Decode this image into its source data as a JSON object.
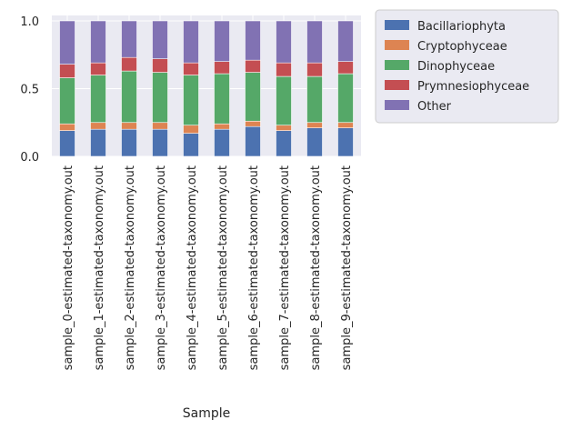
{
  "chart_data": {
    "type": "bar",
    "stacked": true,
    "title": "",
    "xlabel": "Sample",
    "ylabel": "",
    "ylim": [
      0,
      1.04
    ],
    "yticks": [
      0.0,
      0.5,
      1.0
    ],
    "ytick_labels": [
      "0.0",
      "0.5",
      "1.0"
    ],
    "grid": true,
    "legend_position": "outside-top-right",
    "categories": [
      "sample_0-estimated-taxonomy.out",
      "sample_1-estimated-taxonomy.out",
      "sample_2-estimated-taxonomy.out",
      "sample_3-estimated-taxonomy.out",
      "sample_4-estimated-taxonomy.out",
      "sample_5-estimated-taxonomy.out",
      "sample_6-estimated-taxonomy.out",
      "sample_7-estimated-taxonomy.out",
      "sample_8-estimated-taxonomy.out",
      "sample_9-estimated-taxonomy.out"
    ],
    "series": [
      {
        "name": "Bacillariophyta",
        "color": "#4c72b0",
        "values": [
          0.19,
          0.2,
          0.2,
          0.2,
          0.17,
          0.2,
          0.22,
          0.19,
          0.21,
          0.21
        ]
      },
      {
        "name": "Cryptophyceae",
        "color": "#dd8452",
        "values": [
          0.05,
          0.05,
          0.05,
          0.05,
          0.06,
          0.04,
          0.04,
          0.04,
          0.04,
          0.04
        ]
      },
      {
        "name": "Dinophyceae",
        "color": "#55a868",
        "values": [
          0.34,
          0.35,
          0.38,
          0.37,
          0.37,
          0.37,
          0.36,
          0.36,
          0.34,
          0.36
        ]
      },
      {
        "name": "Prymnesiophyceae",
        "color": "#c44e52",
        "values": [
          0.1,
          0.09,
          0.1,
          0.1,
          0.09,
          0.09,
          0.09,
          0.1,
          0.1,
          0.09
        ]
      },
      {
        "name": "Other",
        "color": "#8172b3",
        "values": [
          0.32,
          0.31,
          0.27,
          0.28,
          0.31,
          0.3,
          0.29,
          0.31,
          0.31,
          0.3
        ]
      }
    ]
  }
}
